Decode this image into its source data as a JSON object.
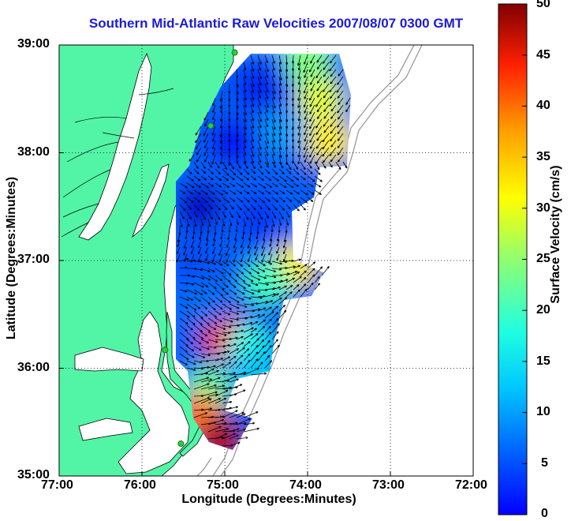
{
  "title": "Southern Mid-Atlantic Raw Velocities 2007/08/07 0300 GMT",
  "title_color": "#1b1bd8",
  "x_axis": {
    "label": "Longitude (Degrees:Minutes)",
    "ticks": [
      "77:00",
      "76:00",
      "75:00",
      "74:00",
      "73:00",
      "72:00"
    ]
  },
  "y_axis": {
    "label": "Latitude (Degrees:Minutes)",
    "ticks": [
      "39:00",
      "38:00",
      "37:00",
      "36:00",
      "35:00"
    ]
  },
  "colorbar": {
    "label": "Surface Velocity (cm/s)",
    "ticks": [
      "50",
      "45",
      "40",
      "35",
      "30",
      "25",
      "20",
      "15",
      "10",
      "5",
      "0"
    ],
    "min": 0,
    "max": 50,
    "colormap": "jet"
  },
  "colors": {
    "land": "#52f5a6",
    "coastline": "#000000",
    "bathymetry": "#999999",
    "stations": "#28d03a",
    "grid": "#000000"
  },
  "map": {
    "lon_range": [
      -77,
      -72
    ],
    "lat_range": [
      35,
      39
    ],
    "grid": "dotted"
  },
  "stations": [
    {
      "lon": -74.88,
      "lat": 38.93
    },
    {
      "lon": -75.17,
      "lat": 38.25
    },
    {
      "lon": -75.72,
      "lat": 36.17
    },
    {
      "lon": -75.53,
      "lat": 35.3
    }
  ],
  "velocity_patches": [
    {
      "lon": -74.6,
      "lat": 38.6,
      "speed": 8
    },
    {
      "lon": -74.9,
      "lat": 38.1,
      "speed": 7
    },
    {
      "lon": -75.3,
      "lat": 37.5,
      "speed": 4
    },
    {
      "lon": -74.6,
      "lat": 37.4,
      "speed": 9
    },
    {
      "lon": -74.3,
      "lat": 38.2,
      "speed": 14
    },
    {
      "lon": -73.85,
      "lat": 38.5,
      "speed": 30
    },
    {
      "lon": -73.75,
      "lat": 38.1,
      "speed": 32
    },
    {
      "lon": -74.0,
      "lat": 38.85,
      "speed": 25
    },
    {
      "lon": -74.15,
      "lat": 36.95,
      "speed": 32
    },
    {
      "lon": -74.5,
      "lat": 36.8,
      "speed": 22
    },
    {
      "lon": -75.0,
      "lat": 36.3,
      "speed": 42
    },
    {
      "lon": -74.7,
      "lat": 36.2,
      "speed": 20
    },
    {
      "lon": -75.2,
      "lat": 35.8,
      "speed": 24
    },
    {
      "lon": -75.3,
      "lat": 35.55,
      "speed": 38
    },
    {
      "lon": -75.05,
      "lat": 35.32,
      "speed": 48
    },
    {
      "lon": -74.6,
      "lat": 35.95,
      "speed": 16
    },
    {
      "lon": -75.2,
      "lat": 36.6,
      "speed": 12
    },
    {
      "lon": -75.4,
      "lat": 37.0,
      "speed": 10
    }
  ]
}
